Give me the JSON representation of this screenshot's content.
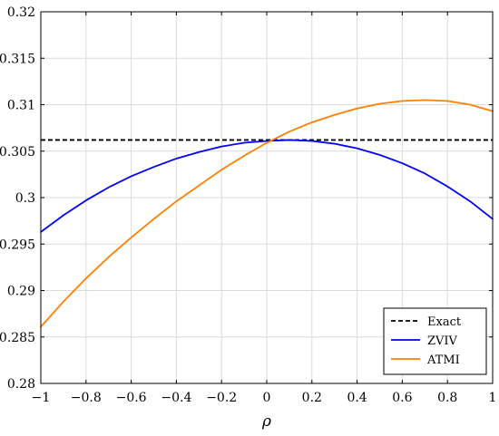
{
  "chart_data": {
    "type": "line",
    "title": "",
    "xlabel": "ρ",
    "ylabel": "",
    "xlim": [
      -1,
      1
    ],
    "ylim": [
      0.28,
      0.32
    ],
    "xticks": [
      -1,
      -0.8,
      -0.6,
      -0.4,
      -0.2,
      0,
      0.2,
      0.4,
      0.6,
      0.8,
      1
    ],
    "xtick_labels": [
      "−1",
      "−0.8",
      "−0.6",
      "−0.4",
      "−0.2",
      "0",
      "0.2",
      "0.4",
      "0.6",
      "0.8",
      "1"
    ],
    "yticks": [
      0.28,
      0.285,
      0.29,
      0.295,
      0.3,
      0.305,
      0.31,
      0.315,
      0.32
    ],
    "ytick_labels": [
      "0.28",
      "0.285",
      "0.29",
      "0.295",
      "0.3",
      "0.305",
      "0.31",
      "0.315",
      "0.32"
    ],
    "grid": true,
    "legend_position": "bottom-right",
    "x": [
      -1,
      -0.9,
      -0.8,
      -0.7,
      -0.6,
      -0.5,
      -0.4,
      -0.3,
      -0.2,
      -0.1,
      0,
      0.1,
      0.2,
      0.3,
      0.4,
      0.5,
      0.6,
      0.7,
      0.8,
      0.9,
      1
    ],
    "series": [
      {
        "name": "Exact",
        "color": "#000000",
        "dash": "dashed",
        "values": [
          0.3062,
          0.3062,
          0.3062,
          0.3062,
          0.3062,
          0.3062,
          0.3062,
          0.3062,
          0.3062,
          0.3062,
          0.3062,
          0.3062,
          0.3062,
          0.3062,
          0.3062,
          0.3062,
          0.3062,
          0.3062,
          0.3062,
          0.3062,
          0.3062
        ]
      },
      {
        "name": "ZVIV",
        "color": "#0000ff",
        "dash": "solid",
        "values": [
          0.2963,
          0.2981,
          0.2997,
          0.3011,
          0.3023,
          0.3033,
          0.3042,
          0.3049,
          0.3055,
          0.3059,
          0.3061,
          0.3062,
          0.3061,
          0.3058,
          0.3053,
          0.3046,
          0.3037,
          0.3026,
          0.3012,
          0.2996,
          0.2977
        ]
      },
      {
        "name": "ATMI",
        "color": "#ff8000",
        "dash": "solid",
        "values": [
          0.2861,
          0.2888,
          0.2913,
          0.2936,
          0.2957,
          0.2977,
          0.2996,
          0.3013,
          0.303,
          0.3045,
          0.3059,
          0.3071,
          0.3081,
          0.3089,
          0.3096,
          0.3101,
          0.3104,
          0.3105,
          0.3104,
          0.31,
          0.3093
        ]
      }
    ]
  }
}
